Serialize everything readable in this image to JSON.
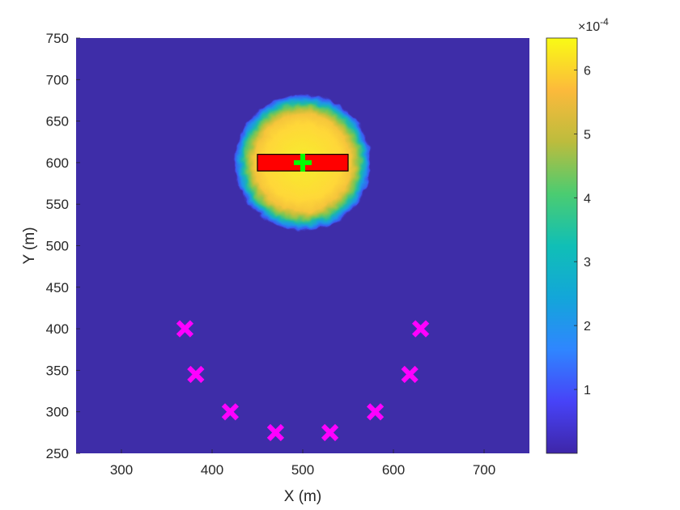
{
  "chart_data": {
    "type": "heatmap",
    "title": "",
    "xlabel": "X (m)",
    "ylabel": "Y (m)",
    "xlim": [
      250,
      750
    ],
    "ylim": [
      250,
      750
    ],
    "xticks": [
      300,
      400,
      500,
      600,
      700
    ],
    "yticks": [
      250,
      300,
      350,
      400,
      450,
      500,
      550,
      600,
      650,
      700,
      750
    ],
    "grid": false,
    "background_value": 0,
    "plume": {
      "center": [
        500,
        600
      ],
      "plateau_value": 6.0,
      "max_value": 6.5,
      "core_radius": 50,
      "edge_radius": 68
    },
    "source_rectangle": {
      "x": [
        450,
        550
      ],
      "y": [
        590,
        610
      ],
      "fill_color": "#ff0000",
      "edge_color": "#000000"
    },
    "source_marker": {
      "label": "+",
      "x": 500,
      "y": 600,
      "color": "#00ff00"
    },
    "sensors": {
      "marker": "x",
      "color": "#ff00ff",
      "x": [
        370,
        382,
        420,
        470,
        530,
        580,
        618,
        630
      ],
      "y": [
        400,
        345,
        300,
        275,
        275,
        300,
        345,
        400
      ]
    },
    "colorbar": {
      "colormap": "parula",
      "range": [
        0,
        6.5
      ],
      "ticks": [
        1,
        2,
        3,
        4,
        5,
        6
      ],
      "exponent_label": "×10",
      "exponent_power": "-4"
    }
  }
}
